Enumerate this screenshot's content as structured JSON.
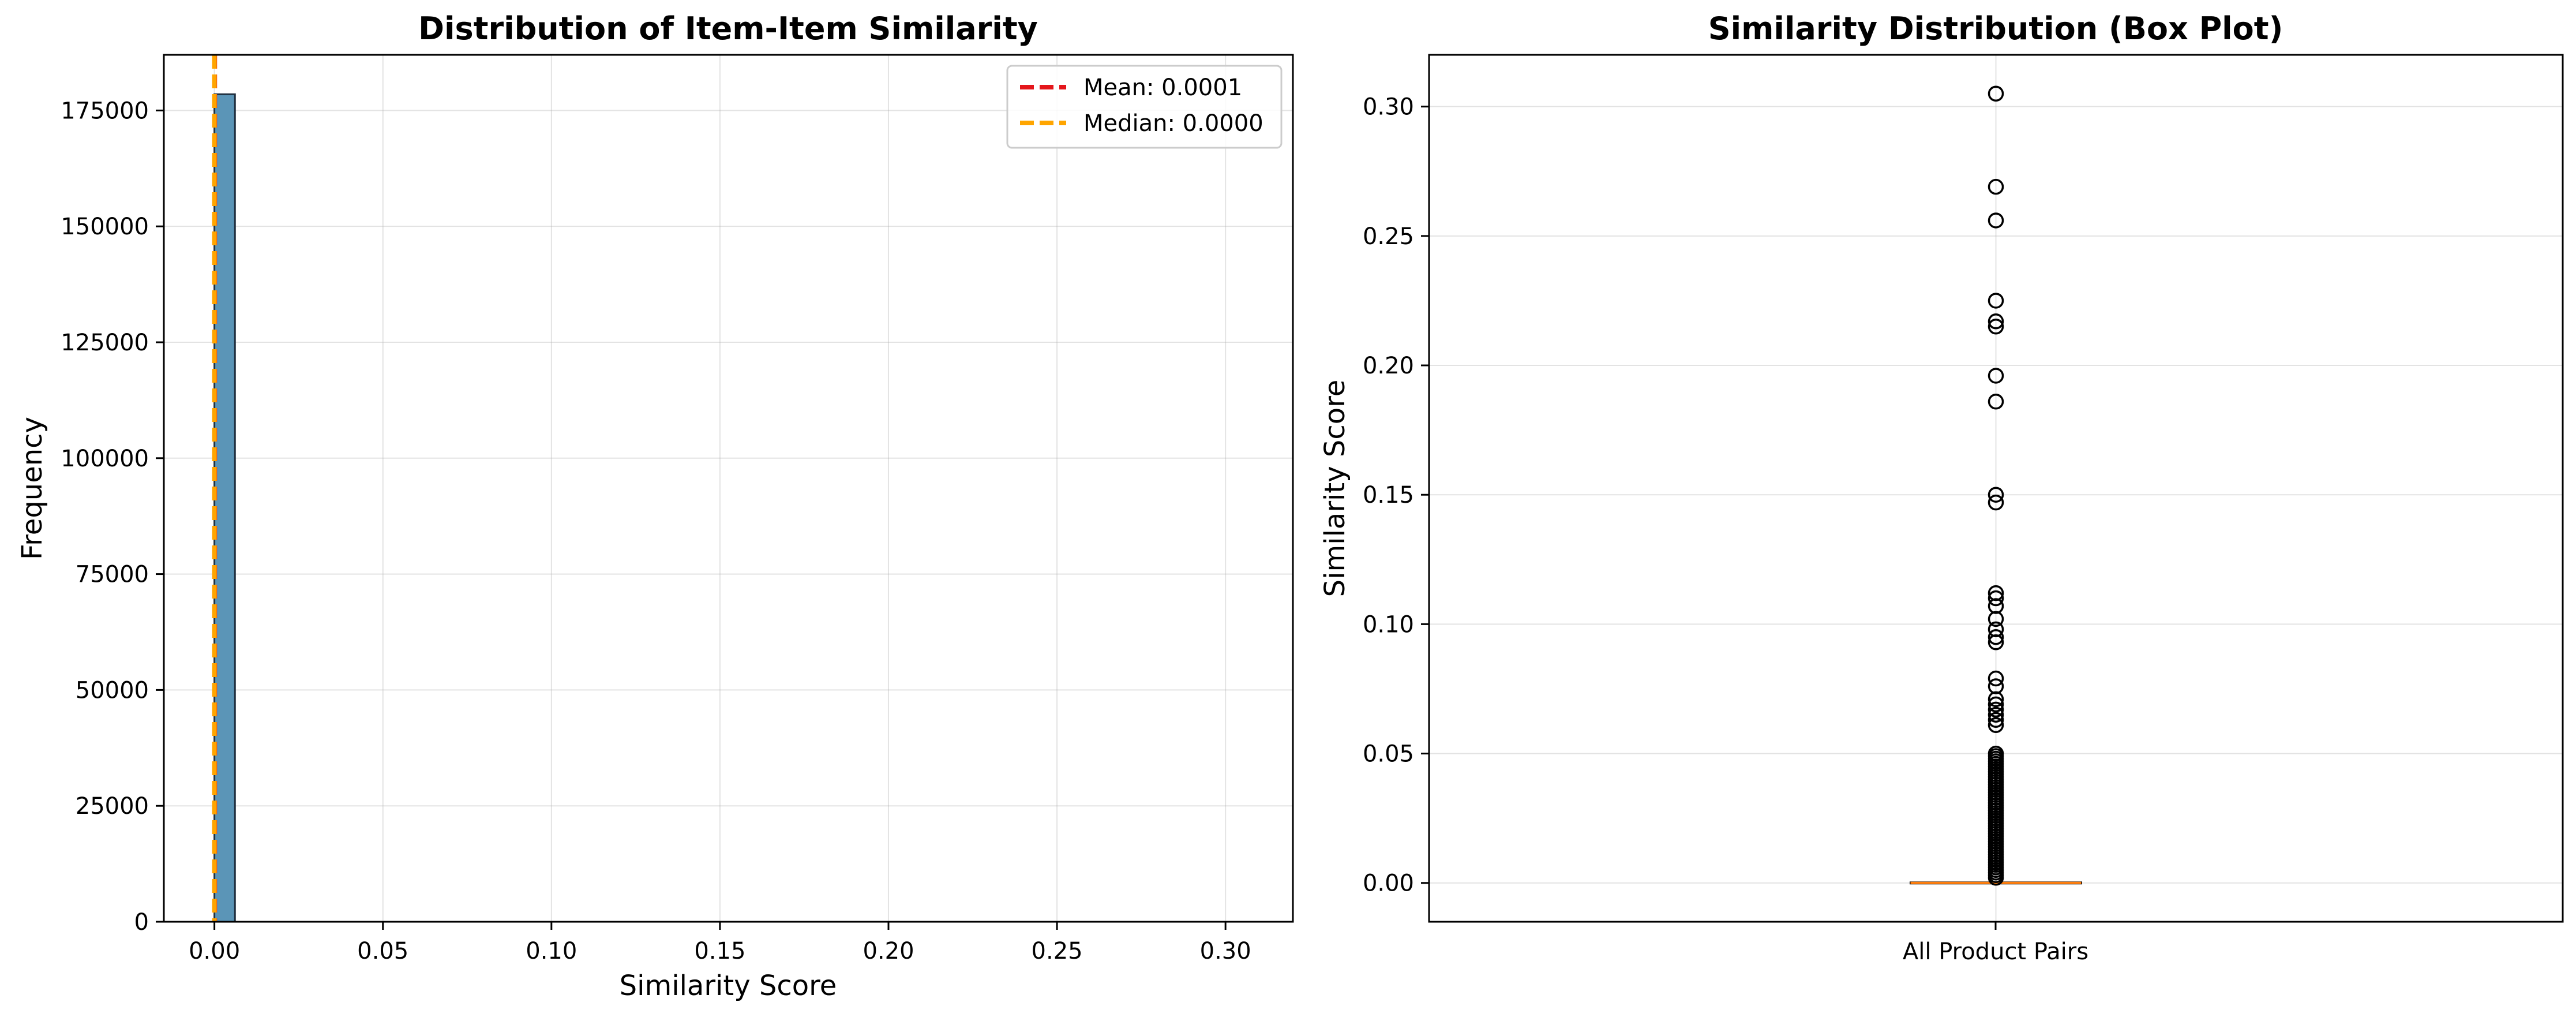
{
  "colors": {
    "bar_fill": "#5b95b7",
    "bar_edge": "#1f2f3f",
    "mean_line": "#e4161b",
    "median_line": "#ffa500",
    "box_median": "#ff7f0e",
    "outlier_edge": "#000000",
    "grid": "#b0b0b0"
  },
  "chart_data": [
    {
      "type": "bar",
      "subtype": "histogram",
      "title": "Distribution of Item-Item Similarity",
      "xlabel": "Similarity Score",
      "ylabel": "Frequency",
      "xlim": [
        -0.015,
        0.32
      ],
      "ylim": [
        0,
        187000
      ],
      "xticks": [
        0.0,
        0.05,
        0.1,
        0.15,
        0.2,
        0.25,
        0.3
      ],
      "xtick_labels": [
        "0.00",
        "0.05",
        "0.10",
        "0.15",
        "0.20",
        "0.25",
        "0.30"
      ],
      "yticks": [
        0,
        25000,
        50000,
        75000,
        100000,
        125000,
        150000,
        175000
      ],
      "ytick_labels": [
        "0",
        "25000",
        "50000",
        "75000",
        "100000",
        "125000",
        "150000",
        "175000"
      ],
      "bins": [
        {
          "x0": 0.0,
          "x1": 0.0061,
          "count": 178500
        }
      ],
      "vlines": [
        {
          "name": "Mean: 0.0001",
          "value": 0.0001,
          "style": "dashed",
          "color": "#e4161b"
        },
        {
          "name": "Median: 0.0000",
          "value": 0.0,
          "style": "dashed",
          "color": "#ffa500"
        }
      ],
      "legend_position": "top-right",
      "grid": true
    },
    {
      "type": "box",
      "title": "Similarity Distribution (Box Plot)",
      "xlabel": "",
      "ylabel": "Similarity Score",
      "category": "All Product Pairs",
      "ylim": [
        -0.015,
        0.32
      ],
      "yticks": [
        0.0,
        0.05,
        0.1,
        0.15,
        0.2,
        0.25,
        0.3
      ],
      "ytick_labels": [
        "0.00",
        "0.05",
        "0.10",
        "0.15",
        "0.20",
        "0.25",
        "0.30"
      ],
      "box": {
        "q1": 0.0,
        "median": 0.0,
        "q3": 0.0,
        "whisker_low": 0.0,
        "whisker_high": 0.0
      },
      "outliers": [
        0.305,
        0.269,
        0.256,
        0.225,
        0.217,
        0.215,
        0.196,
        0.186,
        0.15,
        0.147,
        0.112,
        0.11,
        0.107,
        0.102,
        0.098,
        0.095,
        0.093,
        0.079,
        0.076,
        0.071,
        0.069,
        0.067,
        0.065,
        0.063,
        0.061,
        0.05,
        0.049,
        0.048,
        0.047,
        0.046,
        0.045,
        0.044,
        0.043,
        0.042,
        0.041,
        0.04,
        0.039,
        0.038,
        0.037,
        0.036,
        0.035,
        0.034,
        0.033,
        0.032,
        0.031,
        0.03,
        0.029,
        0.028,
        0.027,
        0.026,
        0.025,
        0.024,
        0.023,
        0.022,
        0.021,
        0.02,
        0.019,
        0.018,
        0.017,
        0.016,
        0.015,
        0.014,
        0.013,
        0.012,
        0.011,
        0.01,
        0.009,
        0.008,
        0.007,
        0.006,
        0.005,
        0.004,
        0.003,
        0.002
      ],
      "grid": true
    }
  ]
}
